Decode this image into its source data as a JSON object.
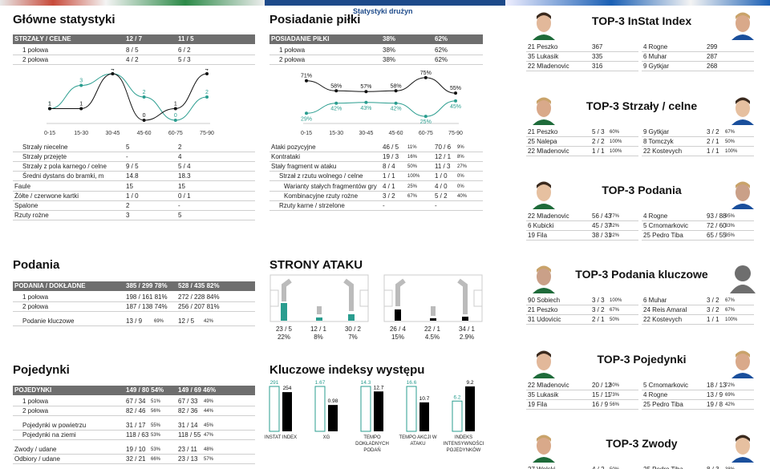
{
  "header": {
    "subtitle": "Statystyki drużyn"
  },
  "main_stats": {
    "title": "Główne statystyki",
    "header": [
      "STRZAŁY / CELNE",
      "12 / 7",
      "11 / 5"
    ],
    "halves": [
      [
        "1 połowa",
        "8 / 5",
        "6 / 2"
      ],
      [
        "2 połowa",
        "4 / 2",
        "5 / 3"
      ]
    ],
    "chart_ticks": [
      "0-15",
      "15-30",
      "30-45",
      "45-60",
      "60-75",
      "75-90"
    ],
    "rows": [
      [
        "Strzały niecelne",
        "5",
        "2"
      ],
      [
        "Strzały przejęte",
        "-",
        "4"
      ],
      [
        "Strzały z pola karnego / celne",
        "9 / 5",
        "5 / 4"
      ],
      [
        "Średni dystans do bramki, m",
        "14.8",
        "18.3"
      ],
      [
        "Faule",
        "15",
        "15"
      ],
      [
        "Żółte / czerwone kartki",
        "1 / 0",
        "0 / 1"
      ],
      [
        "Spalone",
        "2",
        "-"
      ],
      [
        "Rzuty rożne",
        "3",
        "5"
      ]
    ]
  },
  "possession": {
    "title": "Posiadanie piłki",
    "header": [
      "POSIADANIE PIŁKI",
      "38%",
      "62%"
    ],
    "halves": [
      [
        "1 połowa",
        "38%",
        "62%"
      ],
      [
        "2 połowa",
        "38%",
        "62%"
      ]
    ],
    "chart_ticks": [
      "0-15",
      "15-30",
      "30-45",
      "45-60",
      "60-75",
      "75-90"
    ],
    "rows": [
      {
        "label": "Ataki pozycyjne",
        "a": "46 / 5",
        "ap": "11%",
        "b": "70 / 6",
        "bp": "9%"
      },
      {
        "label": "Kontrataki",
        "a": "19 / 3",
        "ap": "16%",
        "b": "12 / 1",
        "bp": "8%"
      },
      {
        "label": "Stały fragment w ataku",
        "a": "8 / 4",
        "ap": "50%",
        "b": "11 / 3",
        "bp": "27%"
      },
      {
        "label": "Strzał z rzutu wolnego / celne",
        "a": "1 / 1",
        "ap": "100%",
        "b": "1 / 0",
        "bp": "0%"
      },
      {
        "label": "Warianty stałych fragmentów gry",
        "a": "4 / 1",
        "ap": "25%",
        "b": "4 / 0",
        "bp": "0%"
      },
      {
        "label": "Kombinacyjne rzuty rożne",
        "a": "3 / 2",
        "ap": "67%",
        "b": "5 / 2",
        "bp": "40%"
      },
      {
        "label": "Rzuty karne / strzelone",
        "a": "-",
        "ap": "",
        "b": "-",
        "bp": ""
      }
    ]
  },
  "passes": {
    "title": "Podania",
    "header": [
      "PODANIA / DOKŁADNE",
      "385 / 299 78%",
      "528 / 435 82%"
    ],
    "rows": [
      {
        "label": "1 połowa",
        "a": "198 / 161 81%",
        "b": "272 / 228 84%"
      },
      {
        "label": "2 połowa",
        "a": "187 / 138 74%",
        "b": "256 / 207 81%"
      },
      {
        "label": "Podanie kluczowe",
        "a": "13 / 9",
        "ap": "69%",
        "b": "12 / 5",
        "bp": "42%"
      }
    ]
  },
  "attack_sides": {
    "title": "STRONY ATAKU",
    "team_a": [
      {
        "v": "23 / 5",
        "p": "22%"
      },
      {
        "v": "12 / 1",
        "p": "8%"
      },
      {
        "v": "30 / 2",
        "p": "7%"
      }
    ],
    "team_b": [
      {
        "v": "26 / 4",
        "p": "15%"
      },
      {
        "v": "22 / 1",
        "p": "4.5%"
      },
      {
        "v": "34 / 1",
        "p": "2.9%"
      }
    ]
  },
  "duels": {
    "title": "Pojedynki",
    "header": [
      "POJEDYNKI",
      "149 / 80 54%",
      "149 / 69 46%"
    ],
    "rows": [
      {
        "label": "1 połowa",
        "a": "67 / 34",
        "ap": "51%",
        "b": "67 / 33",
        "bp": "49%"
      },
      {
        "label": "2 połowa",
        "a": "82 / 46",
        "ap": "56%",
        "b": "82 / 36",
        "bp": "44%"
      },
      {
        "label": "Pojedynki w powietrzu",
        "a": "31 / 17",
        "ap": "55%",
        "b": "31 / 14",
        "bp": "45%"
      },
      {
        "label": "Pojedynki na ziemi",
        "a": "118 / 63",
        "ap": "53%",
        "b": "118 / 55",
        "bp": "47%"
      },
      {
        "label": "Zwody / udane",
        "a": "19 / 10",
        "ap": "53%",
        "b": "23 / 11",
        "bp": "48%"
      },
      {
        "label": "Odbiory / udane",
        "a": "32 / 21",
        "ap": "66%",
        "b": "23 / 13",
        "bp": "57%"
      }
    ]
  },
  "key_indices": {
    "title": "Kluczowe indeksy występu",
    "items": [
      {
        "label": "INSTAT INDEX",
        "a": "291",
        "b": "254"
      },
      {
        "label": "XG",
        "a": "1.67",
        "b": "0.98"
      },
      {
        "label": "TEMPO DOKŁADNYCH PODAŃ",
        "a": "14.3",
        "b": "12.7"
      },
      {
        "label": "TEMPO AKCJI W ATAKU",
        "a": "16.6",
        "b": "10.7"
      },
      {
        "label": "INDEKS INTENSYWNOŚCI POJEDYNKÓW",
        "a": "6.2",
        "b": "9.2"
      }
    ]
  },
  "chart_data": [
    {
      "type": "line",
      "title": "Strzały",
      "categories": [
        "0-15",
        "15-30",
        "30-45",
        "45-60",
        "60-75",
        "75-90"
      ],
      "series": [
        {
          "values": [
            1,
            3,
            4,
            2,
            0,
            2
          ],
          "color": "#2a9d8f"
        },
        {
          "values": [
            1,
            1,
            4,
            0,
            1,
            4
          ],
          "color": "#111111"
        }
      ],
      "ylim": [
        0,
        4
      ]
    },
    {
      "type": "line",
      "title": "Posiadanie piłki",
      "categories": [
        "0-15",
        "15-30",
        "30-45",
        "45-60",
        "60-75",
        "75-90"
      ],
      "series": [
        {
          "values": [
            71,
            58,
            57,
            58,
            75,
            55
          ],
          "color": "#111111"
        },
        {
          "values": [
            29,
            42,
            43,
            42,
            25,
            45
          ],
          "color": "#2a9d8f"
        }
      ],
      "ylim": [
        20,
        80
      ]
    },
    {
      "type": "bar",
      "title": "Kluczowe indeksy występu",
      "categories": [
        "INSTAT INDEX",
        "XG",
        "TEMPO DOKŁADNYCH PODAŃ",
        "TEMPO AKCJI W ATAKU",
        "INDEKS INTENSYWNOŚCI POJEDYNKÓW"
      ],
      "series": [
        {
          "values": [
            291,
            1.67,
            14.3,
            16.6,
            6.2
          ],
          "color": "#2a9d8f"
        },
        {
          "values": [
            254,
            0.98,
            12.7,
            10.7,
            9.2
          ],
          "color": "#000000"
        }
      ]
    }
  ],
  "top3": [
    {
      "title": "TOP-3 InStat Index",
      "left": [
        [
          "21 Peszko",
          "367",
          ""
        ],
        [
          "35 Lukasik",
          "335",
          ""
        ],
        [
          "22 Mladenovic",
          "316",
          ""
        ]
      ],
      "right": [
        [
          "4  Rogne",
          "299",
          ""
        ],
        [
          "6  Muhar",
          "287",
          ""
        ],
        [
          "9  Gytkjar",
          "268",
          ""
        ]
      ]
    },
    {
      "title": "TOP-3 Strzały / celne",
      "left": [
        [
          "21 Peszko",
          "5 / 3",
          "60%"
        ],
        [
          "25 Nalepa",
          "2 / 2",
          "100%"
        ],
        [
          "22 Mladenovic",
          "1 / 1",
          "100%"
        ]
      ],
      "right": [
        [
          "9  Gytkjar",
          "3 / 2",
          "67%"
        ],
        [
          "8  Tomczyk",
          "2 / 1",
          "50%"
        ],
        [
          "22 Kostevych",
          "1 / 1",
          "100%"
        ]
      ]
    },
    {
      "title": "TOP-3 Podania",
      "left": [
        [
          "22 Mladenovic",
          "56 / 43",
          "77%"
        ],
        [
          "6  Kubicki",
          "45 / 37",
          "82%"
        ],
        [
          "19 Fila",
          "38 / 31",
          "82%"
        ]
      ],
      "right": [
        [
          "4  Rogne",
          "93 / 88",
          "95%"
        ],
        [
          "5  Crnomarkovic",
          "72 / 60",
          "83%"
        ],
        [
          "25 Pedro Tiba",
          "65 / 55",
          "85%"
        ]
      ]
    },
    {
      "title": "TOP-3 Podania kluczowe",
      "left": [
        [
          "90 Sobiech",
          "3 / 3",
          "100%"
        ],
        [
          "21 Peszko",
          "3 / 2",
          "67%"
        ],
        [
          "31 Udovicic",
          "2 / 1",
          "50%"
        ]
      ],
      "right": [
        [
          "6  Muhar",
          "3 / 2",
          "67%"
        ],
        [
          "24 Reis Amaral",
          "3 / 2",
          "67%"
        ],
        [
          "22 Kostevych",
          "1 / 1",
          "100%"
        ]
      ]
    },
    {
      "title": "TOP-3 Pojedynki",
      "left": [
        [
          "22 Mladenovic",
          "20 / 12",
          "60%"
        ],
        [
          "35 Lukasik",
          "15 / 11",
          "73%"
        ],
        [
          "19 Fila",
          "16 / 9",
          "56%"
        ]
      ],
      "right": [
        [
          "5  Crnomarkovic",
          "18 / 13",
          "72%"
        ],
        [
          "4  Rogne",
          "13 / 9",
          "69%"
        ],
        [
          "25 Pedro Tiba",
          "19 / 8",
          "42%"
        ]
      ]
    },
    {
      "title": "TOP-3 Zwody",
      "left": [
        [
          "27 Wolski",
          "4 / 2",
          "50%"
        ]
      ],
      "right": [
        [
          "25 Pedro Tiba",
          "8 / 3",
          "38%"
        ]
      ]
    }
  ]
}
